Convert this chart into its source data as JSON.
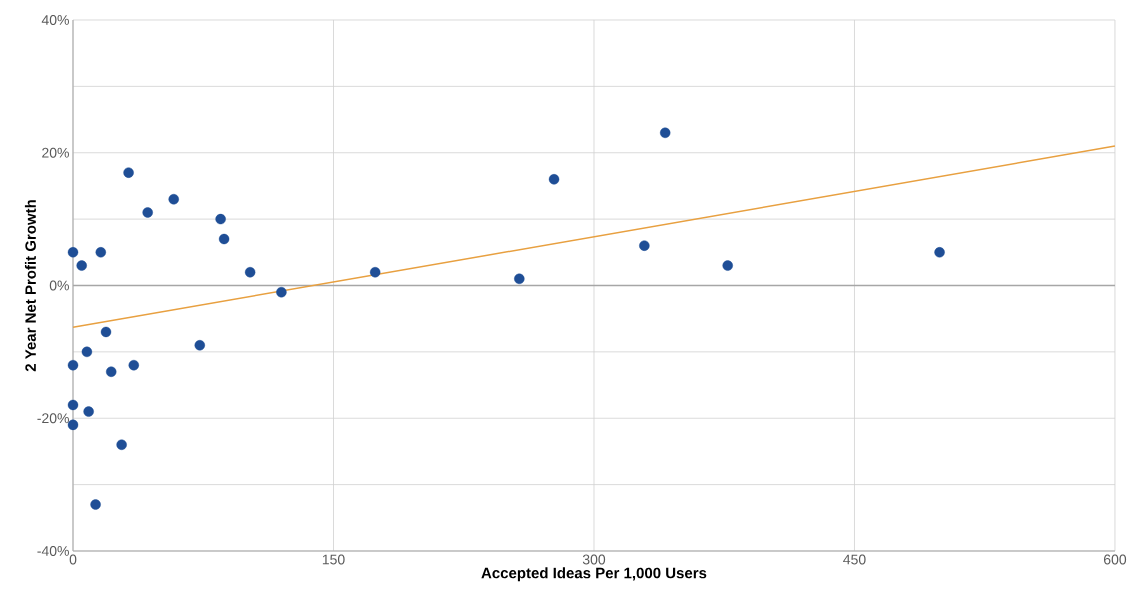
{
  "chart_data": {
    "type": "scatter",
    "xlabel": "Accepted Ideas Per 1,000 Users",
    "ylabel": "2 Year Net Profit Growth",
    "xlim": [
      0,
      600
    ],
    "xticks": [
      0,
      150,
      300,
      450,
      600
    ],
    "ylim": [
      -40,
      40
    ],
    "yticks": [
      {
        "value": -40,
        "label": "-40%"
      },
      {
        "value": -30,
        "label": null
      },
      {
        "value": -20,
        "label": "-20%"
      },
      {
        "value": -10,
        "label": null
      },
      {
        "value": 0,
        "label": "0%"
      },
      {
        "value": 10,
        "label": null
      },
      {
        "value": 20,
        "label": "20%"
      },
      {
        "value": 30,
        "label": null
      },
      {
        "value": 40,
        "label": "40%"
      }
    ],
    "grid": true,
    "series": [
      {
        "marker": "circle",
        "color": "#1f4e96",
        "x": [
          0,
          5,
          16,
          32,
          43,
          58,
          85,
          87,
          102,
          120,
          174,
          257,
          277,
          329,
          341,
          377,
          499,
          19,
          73,
          8,
          0,
          35,
          22,
          0,
          9,
          0,
          28,
          13
        ],
        "values": [
          5,
          3,
          5,
          17,
          11,
          13,
          10,
          7,
          2,
          -1,
          2,
          1,
          16,
          6,
          23,
          3,
          5,
          -7,
          -9,
          -10,
          -12,
          -12,
          -13,
          -18,
          -19,
          -21,
          -24,
          -33
        ]
      },
      {
        "type": "line",
        "marker": "none",
        "color": "#e8a040",
        "x": [
          0,
          600
        ],
        "values": [
          -6.3,
          21
        ]
      }
    ]
  }
}
